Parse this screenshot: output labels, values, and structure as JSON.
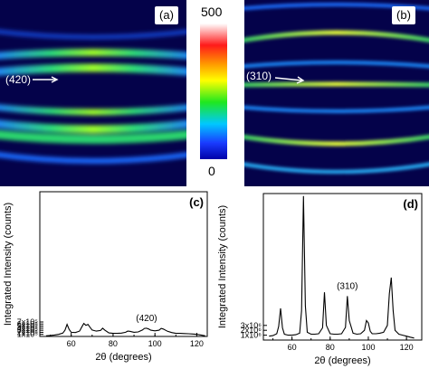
{
  "images": {
    "a": {
      "label": "(a)",
      "annotation": "(420)"
    },
    "b": {
      "label": "(b)",
      "annotation": "(310)"
    }
  },
  "colorbar": {
    "max": "500",
    "min": "0"
  },
  "chart_data": [
    {
      "type": "line",
      "panel_label": "(c)",
      "xlabel": "2θ (degrees)",
      "ylabel": "Integrated Intensity (counts)",
      "xlim": [
        45,
        125
      ],
      "ylim": [
        0,
        7000000
      ],
      "x_ticks": [
        "60",
        "80",
        "100",
        "120"
      ],
      "y_ticks": [
        "1x10⁵",
        "2x10⁵",
        "3x10⁵",
        "4x10⁵",
        "5x10⁵",
        "6x10⁵",
        "7x10⁵"
      ],
      "annotation": {
        "text": "(420)",
        "x": 96
      },
      "x": [
        48,
        50,
        52,
        54,
        56,
        57,
        58,
        59,
        60,
        62,
        64,
        65,
        66,
        67,
        68,
        69,
        70,
        72,
        74,
        75,
        76,
        78,
        80,
        82,
        84,
        86,
        87,
        88,
        90,
        92,
        94,
        95,
        96,
        97,
        98,
        100,
        102,
        103,
        104,
        106,
        108,
        110,
        112,
        114,
        116,
        118,
        120,
        122,
        124
      ],
      "y": [
        0.3,
        0.5,
        0.7,
        1.0,
        1.6,
        3.0,
        5.8,
        3.4,
        2.0,
        1.9,
        2.6,
        4.5,
        6.3,
        5.4,
        5.8,
        4.4,
        3.1,
        2.6,
        2.9,
        4.0,
        3.1,
        1.7,
        1.5,
        1.5,
        1.6,
        2.0,
        2.6,
        2.5,
        2.0,
        2.2,
        3.1,
        3.9,
        4.0,
        3.6,
        3.0,
        2.7,
        3.0,
        3.9,
        3.6,
        2.5,
        1.9,
        1.5,
        1.5,
        1.4,
        1.3,
        1.2,
        1.0,
        0.7,
        0.3
      ]
    },
    {
      "type": "line",
      "panel_label": "(d)",
      "xlabel": "2θ (degrees)",
      "ylabel": "Integrated Intensity (counts)",
      "xlim": [
        45,
        128
      ],
      "ylim": [
        0,
        30000000
      ],
      "x_ticks": [
        "60",
        "80",
        "100",
        "120"
      ],
      "y_ticks": [
        "1x10⁶",
        "2x10⁶",
        "3x10⁶"
      ],
      "annotation": {
        "text": "(310)",
        "x": 89
      },
      "x": [
        48,
        50,
        52,
        53,
        54,
        55,
        56,
        58,
        60,
        62,
        64,
        65,
        66,
        67,
        68,
        70,
        72,
        74,
        76,
        77,
        78,
        80,
        82,
        84,
        86,
        88,
        89,
        90,
        92,
        94,
        96,
        98,
        99,
        100,
        101,
        102,
        104,
        106,
        108,
        110,
        111,
        112,
        113,
        114,
        116,
        118,
        120,
        122,
        124
      ],
      "y": [
        0.8,
        0.9,
        1.3,
        2.8,
        6.5,
        2.5,
        1.2,
        1.0,
        1.0,
        1.1,
        1.4,
        6.0,
        29.5,
        7.0,
        1.6,
        1.2,
        1.2,
        1.3,
        2.5,
        9.8,
        3.0,
        1.3,
        1.2,
        1.2,
        1.3,
        2.6,
        9.0,
        4.0,
        1.4,
        1.2,
        1.3,
        2.0,
        4.0,
        3.5,
        1.8,
        1.3,
        1.3,
        1.4,
        1.6,
        3.0,
        9.5,
        12.8,
        6.0,
        2.0,
        1.2,
        1.0,
        0.8,
        0.6,
        0.4
      ]
    }
  ]
}
